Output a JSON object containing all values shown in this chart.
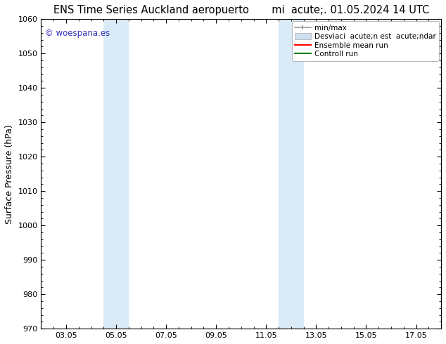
{
  "title_left": "ENS Time Series Auckland aeropuerto",
  "title_right": "mi  acute;. 01.05.2024 14 UTC",
  "ylabel": "Surface Pressure (hPa)",
  "ylim": [
    970,
    1060
  ],
  "yticks": [
    970,
    980,
    990,
    1000,
    1010,
    1020,
    1030,
    1040,
    1050,
    1060
  ],
  "xtick_labels": [
    "03.05",
    "05.05",
    "07.05",
    "09.05",
    "11.05",
    "13.05",
    "15.05",
    "17.05"
  ],
  "xtick_positions": [
    3,
    5,
    7,
    9,
    11,
    13,
    15,
    17
  ],
  "xmin": 2,
  "xmax": 18,
  "shaded_regions": [
    {
      "xmin": 4.5,
      "xmax": 5.5,
      "color": "#daeaf7"
    },
    {
      "xmin": 11.5,
      "xmax": 12.5,
      "color": "#daeaf7"
    }
  ],
  "watermark_text": "© woespana.es",
  "watermark_color": "#3333bb",
  "legend_labels": [
    "min/max",
    "Desviaci  acute;n est  acute;ndar",
    "Ensemble mean run",
    "Controll run"
  ],
  "legend_colors_line": [
    "#aaaaaa",
    "#ccddee",
    "red",
    "green"
  ],
  "bg_color": "#ffffff",
  "spine_color": "#000000",
  "title_fontsize": 10.5,
  "ylabel_fontsize": 9,
  "tick_fontsize": 8,
  "watermark_fontsize": 8.5,
  "legend_fontsize": 7.5
}
